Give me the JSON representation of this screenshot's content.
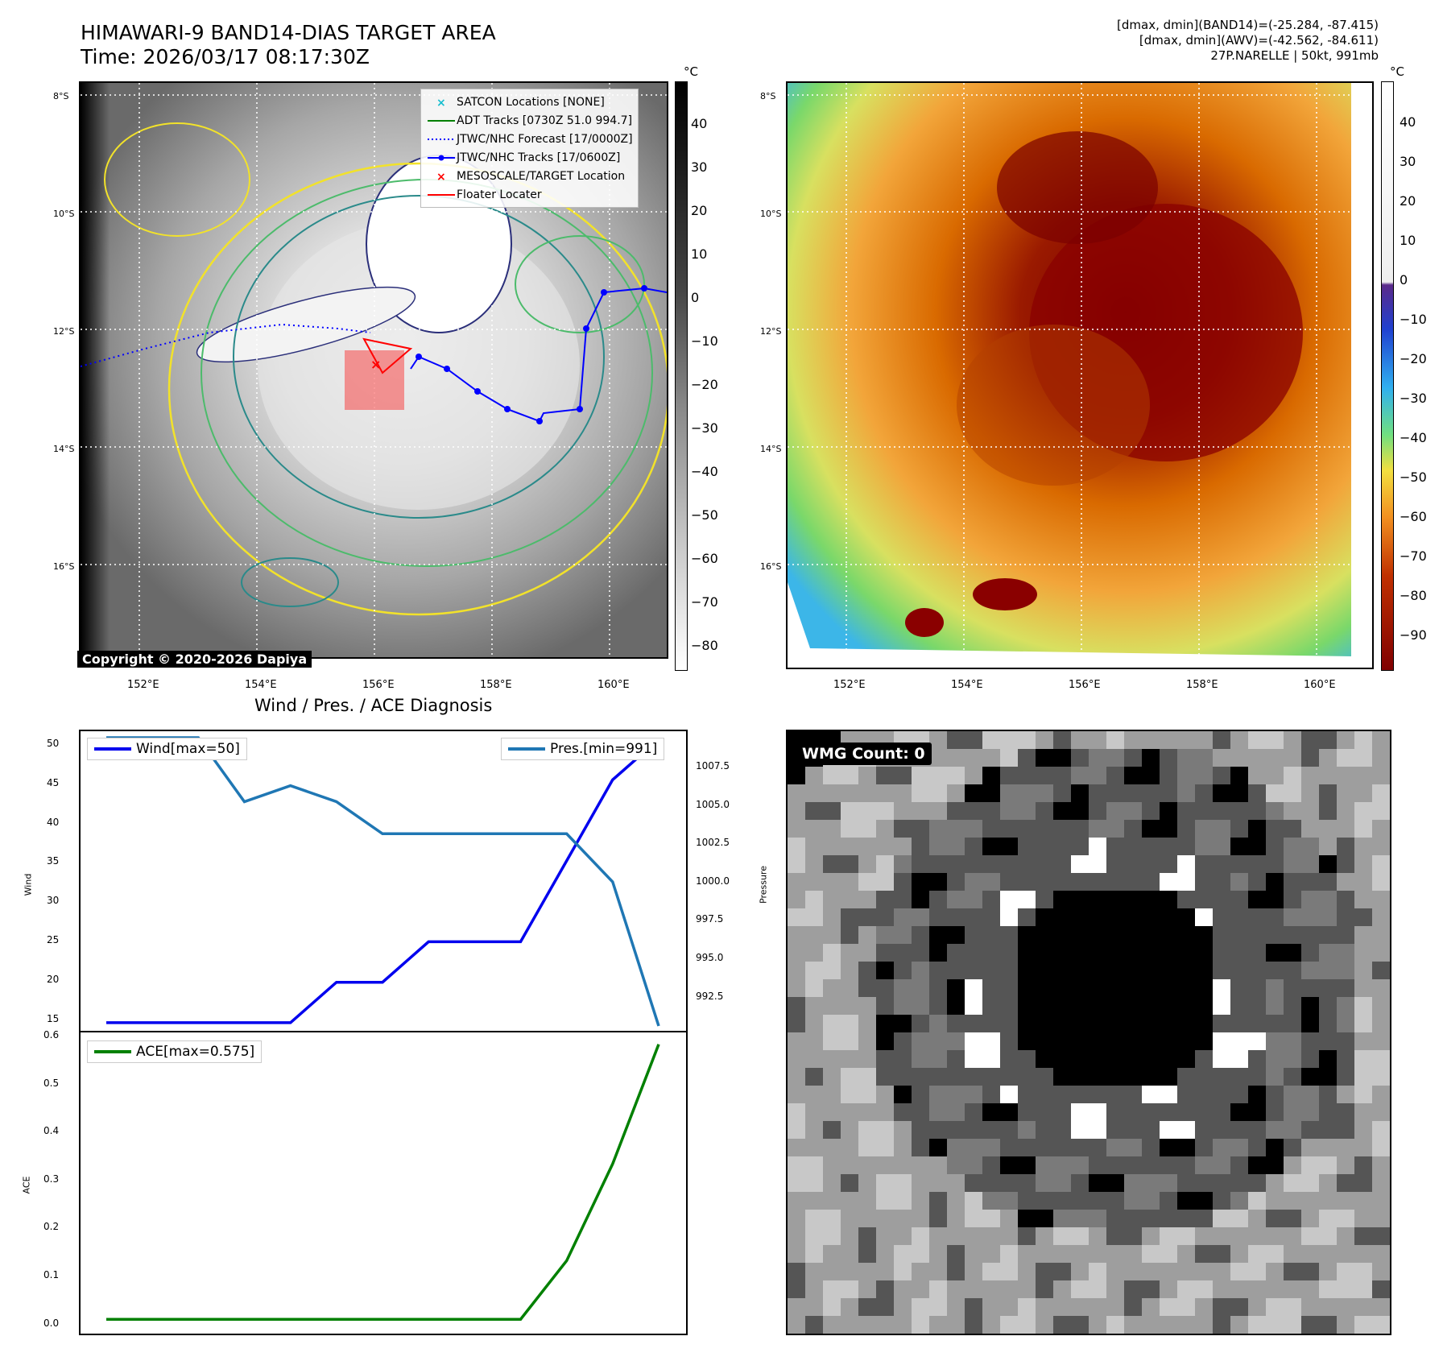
{
  "header": {
    "title_line1": "HIMAWARI-9 BAND14-DIAS TARGET AREA",
    "title_line2": "Time: 2026/03/17 08:17:30Z",
    "info_line1": "[dmax, dmin](BAND14)=(-25.284, -87.415)",
    "info_line2": "[dmax, dmin](AWV)=(-42.562, -84.611)",
    "info_line3": "27P.NARELLE | 50kt, 991mb"
  },
  "map_axes": {
    "lat_labels": [
      "8°S",
      "10°S",
      "12°S",
      "14°S",
      "16°S"
    ],
    "lon_labels": [
      "152°E",
      "154°E",
      "156°E",
      "158°E",
      "160°E"
    ]
  },
  "colorbar_gray": {
    "unit": "°C",
    "ticks": [
      "40",
      "30",
      "20",
      "10",
      "0",
      "−10",
      "−20",
      "−30",
      "−40",
      "−50",
      "−60",
      "−70",
      "−80"
    ]
  },
  "colorbar_color": {
    "unit": "°C",
    "ticks": [
      "40",
      "30",
      "20",
      "10",
      "0",
      "−10",
      "−20",
      "−30",
      "−40",
      "−50",
      "−60",
      "−70",
      "−80",
      "−90"
    ]
  },
  "copyright": "Copyright © 2020-2026 Dapiya",
  "legend": [
    {
      "label": "SATCON Locations [NONE]",
      "color": "#17becf",
      "icon": "x-marker"
    },
    {
      "label": "ADT Tracks [0730Z 51.0 994.7]",
      "color": "#008000",
      "icon": "solid-line"
    },
    {
      "label": "JTWC/NHC Forecast [17/0000Z]",
      "color": "#0000ff",
      "icon": "dotted-line"
    },
    {
      "label": "JTWC/NHC Tracks [17/0600Z]",
      "color": "#0000ff",
      "icon": "line-dot"
    },
    {
      "label": "MESOSCALE/TARGET Location",
      "color": "#ff0000",
      "icon": "x-marker"
    },
    {
      "label": "Floater Locater",
      "color": "#ff0000",
      "icon": "solid-line"
    }
  ],
  "diagnosis": {
    "title": "Wind / Pres. / ACE Diagnosis",
    "wind_label": "Wind",
    "pres_label": "Pressure",
    "ace_label": "ACE",
    "wind_legend": "Wind[max=50]",
    "pres_legend": "Pres.[min=991]",
    "ace_legend": "ACE[max=0.575]",
    "wind_ticks": [
      "50",
      "45",
      "40",
      "35",
      "30",
      "25",
      "20",
      "15"
    ],
    "pres_ticks": [
      "1007.5",
      "1005.0",
      "1002.5",
      "1000.0",
      "997.5",
      "995.0",
      "992.5"
    ],
    "ace_ticks": [
      "0.6",
      "0.5",
      "0.4",
      "0.3",
      "0.2",
      "0.1",
      "0.0"
    ]
  },
  "chart_data": [
    {
      "type": "line",
      "title": "Wind / Pres. / ACE Diagnosis",
      "x": [
        0,
        1,
        2,
        3,
        4,
        5,
        6,
        7,
        8,
        9,
        10,
        11,
        12
      ],
      "series": [
        {
          "name": "Wind[max=50]",
          "axis": "left",
          "ylabel": "Wind",
          "color": "#0000ee",
          "ylim": [
            14,
            51
          ],
          "values": [
            15,
            15,
            15,
            15,
            15,
            20,
            20,
            25,
            25,
            25,
            35,
            45,
            50
          ]
        },
        {
          "name": "Pres.[min=991]",
          "axis": "right",
          "ylabel": "Pressure",
          "color": "#1f77b4",
          "ylim": [
            990.7,
            1009.4
          ],
          "values": [
            1009,
            1009,
            1009,
            1005,
            1006,
            1005,
            1003,
            1003,
            1003,
            1003,
            1003,
            1000,
            991
          ]
        }
      ]
    },
    {
      "type": "line",
      "x": [
        0,
        1,
        2,
        3,
        4,
        5,
        6,
        7,
        8,
        9,
        10,
        11,
        12
      ],
      "series": [
        {
          "name": "ACE[max=0.575]",
          "ylabel": "ACE",
          "color": "#008000",
          "ylim": [
            -0.03,
            0.6
          ],
          "values": [
            0,
            0,
            0,
            0,
            0,
            0,
            0,
            0,
            0,
            0,
            0.1225,
            0.325,
            0.575
          ]
        }
      ]
    }
  ],
  "wmg": {
    "label": "WMG Count: 0"
  }
}
